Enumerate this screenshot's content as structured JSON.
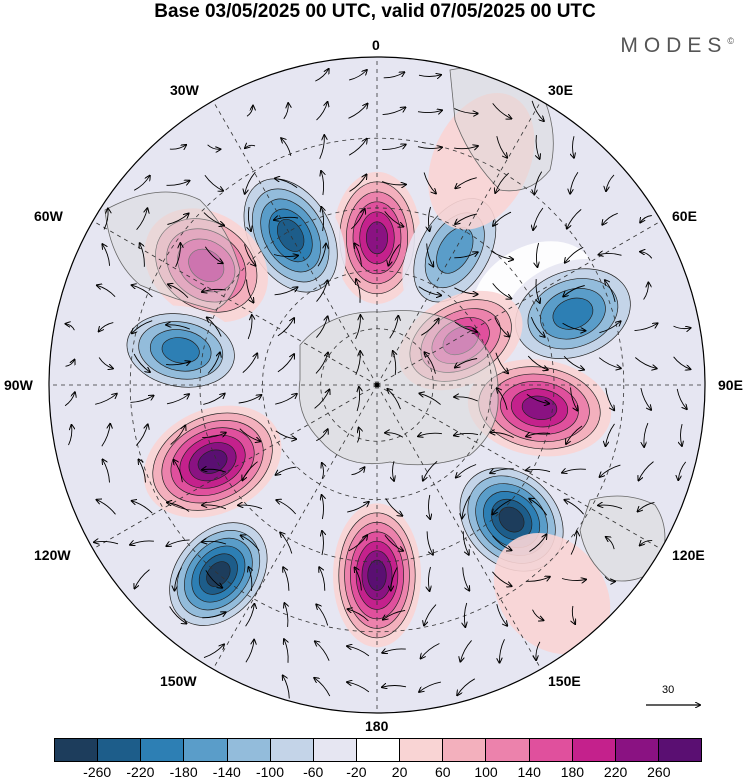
{
  "title": "Base 03/05/2025 00 UTC, valid 07/05/2025 00 UTC",
  "brand": "MODES",
  "brand_mark": "©",
  "longitude_labels": {
    "top": "0",
    "top_right": "30E",
    "upper_right": "60E",
    "right": "90E",
    "lower_right": "120E",
    "bottom_right": "150E",
    "bottom": "180",
    "bottom_left": "150W",
    "lower_left": "120W",
    "left": "90W",
    "upper_left": "60W",
    "top_left": "30W"
  },
  "reference_vector": {
    "label": "30"
  },
  "colorbar": {
    "colors": [
      "#1d3d5c",
      "#1d5d8a",
      "#2d7fb4",
      "#5a9dc9",
      "#93bcdb",
      "#c4d4e8",
      "#e6e6f2",
      "#ffffff",
      "#f9d4d4",
      "#f3b0bd",
      "#ec82ac",
      "#e0509d",
      "#c4218c",
      "#8a1282",
      "#5a0f72"
    ],
    "ticks": [
      "-260",
      "-220",
      "-180",
      "-140",
      "-100",
      "-60",
      "-20",
      "20",
      "60",
      "100",
      "140",
      "180",
      "220",
      "260"
    ]
  },
  "anomaly_centers": [
    {
      "lon": 0,
      "lat": -52,
      "value": 240
    },
    {
      "lon": -30,
      "lat": -46,
      "value": -240
    },
    {
      "lon": -55,
      "lat": -38,
      "value": 180
    },
    {
      "lon": 30,
      "lat": -50,
      "value": -160
    },
    {
      "lon": 60,
      "lat": -44,
      "value": 10
    },
    {
      "lon": 70,
      "lat": -38,
      "value": -200
    },
    {
      "lon": 62,
      "lat": -65,
      "value": 200
    },
    {
      "lon": 98,
      "lat": -48,
      "value": 240
    },
    {
      "lon": 135,
      "lat": -42,
      "value": -270
    },
    {
      "lon": 180,
      "lat": -42,
      "value": 270
    },
    {
      "lon": -140,
      "lat": -30,
      "value": -270
    },
    {
      "lon": -115,
      "lat": -44,
      "value": 270
    },
    {
      "lon": -80,
      "lat": -40,
      "value": -200
    },
    {
      "lon": 25,
      "lat": -30,
      "value": 50
    },
    {
      "lon": 140,
      "lat": -25,
      "value": 30
    }
  ]
}
